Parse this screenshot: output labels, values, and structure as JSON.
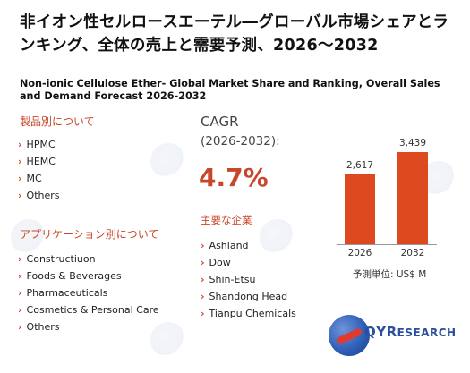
{
  "title_jp": "非イオン性セルロースエーテル―グローバル市場シェアとランキング、全体の売上と需要予測、2026～2032",
  "title_en": "Non-ionic Cellulose Ether- Global Market Share and Ranking, Overall Sales and Demand Forecast 2026-2032",
  "product_section": {
    "heading": "製品別について",
    "items": [
      "HPMC",
      "HEMC",
      "MC",
      "Others"
    ]
  },
  "application_section": {
    "heading": "アプリケーション別について",
    "items": [
      "Constructiuon",
      "Foods & Beverages",
      "Pharmaceuticals",
      "Cosmetics & Personal Care",
      "Others"
    ]
  },
  "cagr": {
    "label": "CAGR",
    "period": "(2026-2032):",
    "value": "4.7%"
  },
  "players": {
    "heading": "主要な企業",
    "items": [
      "Ashland",
      "Dow",
      "Shin-Etsu",
      "Shandong Head",
      "Tianpu Chemicals"
    ]
  },
  "chart_data": {
    "type": "bar",
    "categories": [
      "2026",
      "2032"
    ],
    "values": [
      2617,
      3439
    ],
    "value_labels": [
      "2,617",
      "3,439"
    ],
    "unit_label": "予測単位: US$ M",
    "bar_color": "#de4a1f"
  },
  "logo": {
    "text_main": "QYR",
    "text_sub": "ESEARCH"
  },
  "colors": {
    "accent": "#c8472a",
    "bar": "#de4a1f",
    "brand_blue": "#2a4f9e"
  },
  "icons": {
    "list_bullet": "chevron-right-icon"
  }
}
